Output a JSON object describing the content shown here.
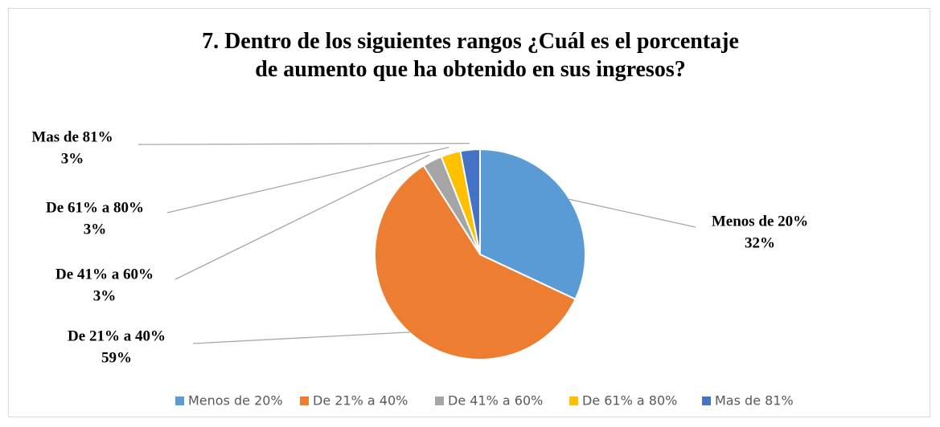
{
  "chart_data": {
    "type": "pie",
    "title": "7. Dentro de los siguientes rangos ¿Cuál es el porcentaje de aumento que ha obtenido en sus ingresos?",
    "categories": [
      "Menos de 20%",
      "De 21% a 40%",
      "De 41% a 60%",
      "De 61% a 80%",
      "Mas de 81%"
    ],
    "values": [
      32,
      59,
      3,
      3,
      3
    ],
    "value_labels": [
      "32%",
      "59%",
      "3%",
      "3%",
      "3%"
    ],
    "colors": [
      "#5b9bd5",
      "#ed7d31",
      "#a5a5a5",
      "#ffc000",
      "#4472c4"
    ],
    "legend": "bottom"
  }
}
